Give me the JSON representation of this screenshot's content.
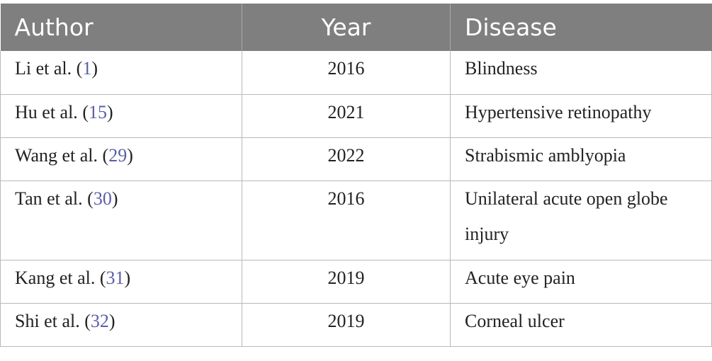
{
  "table": {
    "headers": [
      "Author",
      "Year",
      "Disease"
    ],
    "rows": [
      {
        "author": "Li et al.",
        "ref": "1",
        "year": "2016",
        "disease": "Blindness"
      },
      {
        "author": "Hu et al.",
        "ref": "15",
        "year": "2021",
        "disease": "Hypertensive retinopathy"
      },
      {
        "author": "Wang et al.",
        "ref": "29",
        "year": "2022",
        "disease": "Strabismic amblyopia"
      },
      {
        "author": "Tan et al.",
        "ref": "30",
        "year": "2016",
        "disease": "Unilateral acute open globe injury"
      },
      {
        "author": "Kang et al.",
        "ref": "31",
        "year": "2019",
        "disease": "Acute eye pain"
      },
      {
        "author": "Shi et al.",
        "ref": "32",
        "year": "2019",
        "disease": "Corneal ulcer"
      }
    ]
  }
}
